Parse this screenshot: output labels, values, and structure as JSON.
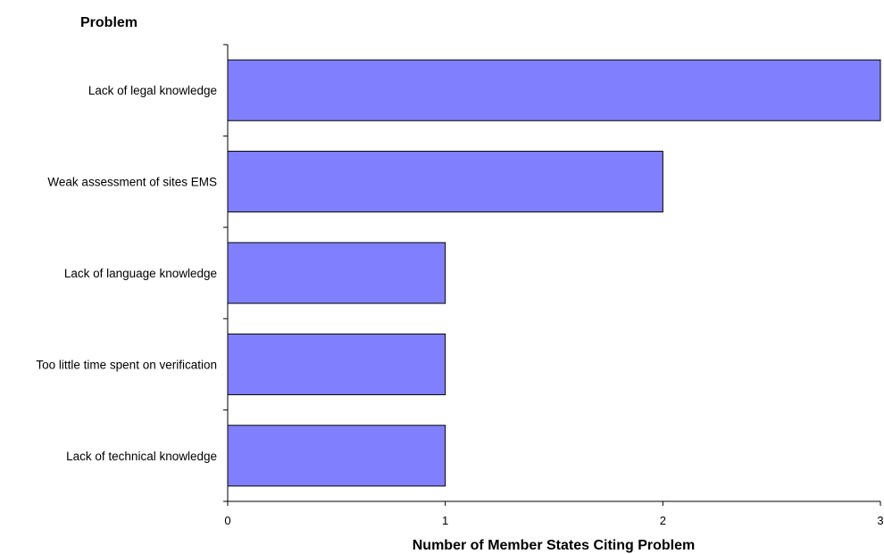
{
  "chart_data": {
    "type": "bar",
    "orientation": "horizontal",
    "categories": [
      "Lack of legal knowledge",
      "Weak assessment of sites EMS",
      "Lack of language knowledge",
      "Too little time spent on verification",
      "Lack of technical knowledge"
    ],
    "values": [
      3,
      2,
      1,
      1,
      1
    ],
    "xlabel": "Number of Member States Citing Problem",
    "ylabel": "Problem",
    "xlim": [
      0,
      3
    ],
    "xticks": [
      "0",
      "1",
      "2",
      "3"
    ],
    "grid": false,
    "legend": "none",
    "bar_color": "#8080ff",
    "bar_edge_color": "#000000"
  }
}
